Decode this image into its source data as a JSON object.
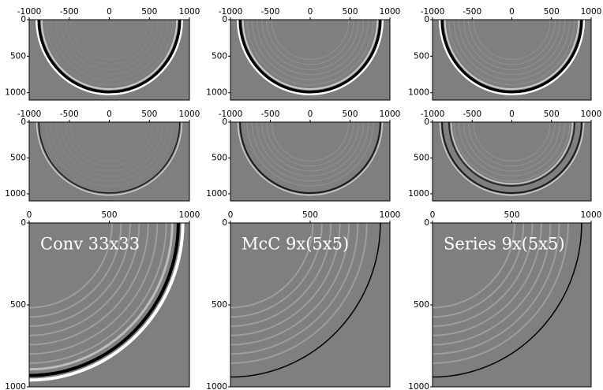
{
  "chart_data": [
    {
      "type": "image",
      "xlim": [
        -1000,
        1000
      ],
      "ylim": [
        0,
        1100
      ],
      "xticks": [
        -1000,
        -500,
        0,
        500,
        1000
      ],
      "yticks": [
        0,
        500,
        1000
      ]
    },
    {
      "type": "image",
      "xlim": [
        -1000,
        1000
      ],
      "ylim": [
        0,
        1100
      ],
      "xticks": [
        -1000,
        -500,
        0,
        500,
        1000
      ],
      "yticks": [
        0,
        500,
        1000
      ]
    },
    {
      "type": "image",
      "xlim": [
        -1000,
        1000
      ],
      "ylim": [
        0,
        1100
      ],
      "xticks": [
        -1000,
        -500,
        0,
        500,
        1000
      ],
      "yticks": [
        0,
        500,
        1000
      ]
    },
    {
      "type": "image",
      "xlim": [
        -1000,
        1000
      ],
      "ylim": [
        0,
        1100
      ],
      "xticks": [
        -1000,
        -500,
        0,
        500,
        1000
      ],
      "yticks": [
        0,
        500,
        1000
      ]
    },
    {
      "type": "image",
      "xlim": [
        -1000,
        1000
      ],
      "ylim": [
        0,
        1100
      ],
      "xticks": [
        -1000,
        -500,
        0,
        500,
        1000
      ],
      "yticks": [
        0,
        500,
        1000
      ]
    },
    {
      "type": "image",
      "xlim": [
        -1000,
        1000
      ],
      "ylim": [
        0,
        1100
      ],
      "xticks": [
        -1000,
        -500,
        0,
        500,
        1000
      ],
      "yticks": [
        0,
        500,
        1000
      ]
    },
    {
      "type": "image",
      "xlim": [
        0,
        1000
      ],
      "ylim": [
        0,
        1000
      ],
      "xticks": [
        0,
        500,
        1000
      ],
      "yticks": [
        0,
        500,
        1000
      ],
      "label": "Conv 33x33"
    },
    {
      "type": "image",
      "xlim": [
        0,
        1000
      ],
      "ylim": [
        0,
        1000
      ],
      "xticks": [
        0,
        500,
        1000
      ],
      "yticks": [
        0,
        500,
        1000
      ],
      "label": "McC 9x(5x5)"
    },
    {
      "type": "image",
      "xlim": [
        0,
        1000
      ],
      "ylim": [
        0,
        1000
      ],
      "xticks": [
        0,
        500,
        1000
      ],
      "yticks": [
        0,
        500,
        1000
      ],
      "label": "Series 9x(5x5)"
    }
  ]
}
